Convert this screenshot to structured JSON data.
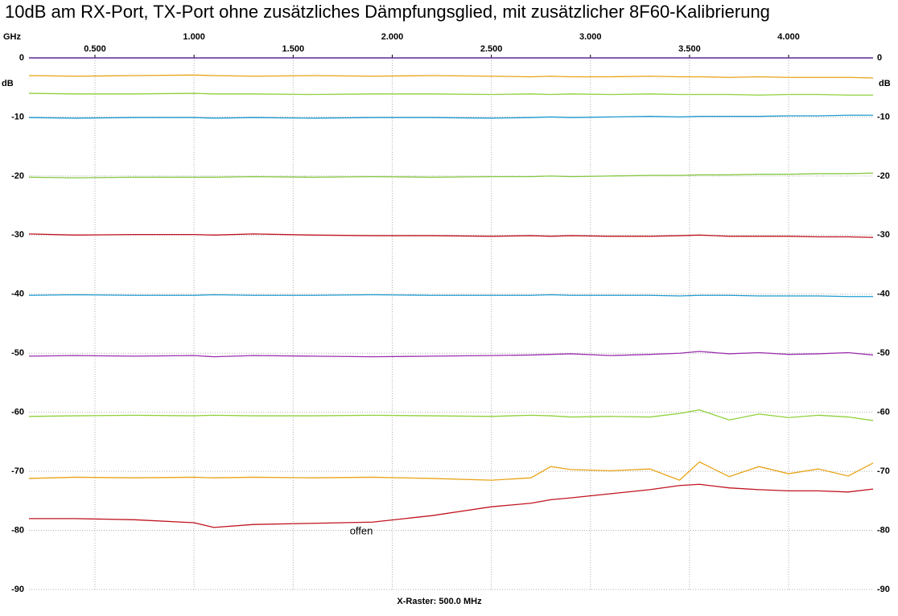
{
  "chart_data": {
    "type": "line",
    "title": "10dB am RX-Port, TX-Port ohne zusätzliches Dämpfungsglied, mit zusätzlicher 8F60-Kalibrierung",
    "x_unit": "GHz",
    "y_unit": "dB",
    "footer": "X-Raster: 500.0 MHz",
    "xlim": [
      0.167,
      4.426
    ],
    "ylim": [
      -90,
      0
    ],
    "xticks": [
      {
        "value": 0.5,
        "label": "0.500"
      },
      {
        "value": 1.0,
        "label": "1.000"
      },
      {
        "value": 1.5,
        "label": "1.500"
      },
      {
        "value": 2.0,
        "label": "2.000"
      },
      {
        "value": 2.5,
        "label": "2.500"
      },
      {
        "value": 3.0,
        "label": "3.000"
      },
      {
        "value": 3.5,
        "label": "3.500"
      },
      {
        "value": 4.0,
        "label": "4.000"
      }
    ],
    "yticks": [
      0,
      -10,
      -20,
      -30,
      -40,
      -50,
      -60,
      -70,
      -80,
      -90
    ],
    "grid": true,
    "x": [
      0.167,
      0.4,
      0.7,
      1.0,
      1.1,
      1.3,
      1.6,
      1.9,
      2.2,
      2.5,
      2.7,
      2.8,
      2.9,
      3.1,
      3.3,
      3.45,
      3.55,
      3.7,
      3.85,
      4.0,
      4.15,
      4.3,
      4.426
    ],
    "series": [
      {
        "color": "#e8a317",
        "values": [
          -3.0,
          -3.1,
          -3.0,
          -2.9,
          -3.0,
          -3.1,
          -3.0,
          -3.1,
          -3.0,
          -3.1,
          -3.2,
          -3.1,
          -3.2,
          -3.2,
          -3.1,
          -3.2,
          -3.2,
          -3.3,
          -3.2,
          -3.3,
          -3.3,
          -3.3,
          -3.4
        ]
      },
      {
        "color": "#8fd13b",
        "values": [
          -6.0,
          -6.1,
          -6.1,
          -6.0,
          -6.1,
          -6.1,
          -6.2,
          -6.1,
          -6.1,
          -6.2,
          -6.1,
          -6.2,
          -6.1,
          -6.2,
          -6.1,
          -6.2,
          -6.2,
          -6.2,
          -6.3,
          -6.2,
          -6.2,
          -6.3,
          -6.3
        ]
      },
      {
        "color": "#1f9bcf",
        "values": [
          -10.1,
          -10.2,
          -10.1,
          -10.1,
          -10.2,
          -10.1,
          -10.2,
          -10.1,
          -10.1,
          -10.2,
          -10.1,
          -10.0,
          -10.1,
          -10.0,
          -9.9,
          -10.0,
          -9.9,
          -9.9,
          -9.9,
          -9.8,
          -9.8,
          -9.7,
          -9.7
        ]
      },
      {
        "color": "#84c940",
        "values": [
          -20.2,
          -20.3,
          -20.2,
          -20.2,
          -20.2,
          -20.1,
          -20.2,
          -20.1,
          -20.2,
          -20.1,
          -20.1,
          -20.0,
          -20.1,
          -20.0,
          -19.9,
          -19.9,
          -19.8,
          -19.8,
          -19.7,
          -19.7,
          -19.6,
          -19.6,
          -19.5
        ]
      },
      {
        "color": "#c0141e",
        "values": [
          -29.8,
          -30.0,
          -29.9,
          -29.9,
          -30.0,
          -29.8,
          -30.0,
          -30.1,
          -30.1,
          -30.2,
          -30.1,
          -30.2,
          -30.1,
          -30.2,
          -30.2,
          -30.1,
          -30.0,
          -30.2,
          -30.2,
          -30.2,
          -30.3,
          -30.3,
          -30.4
        ]
      },
      {
        "color": "#1f9bcf",
        "values": [
          -40.2,
          -40.1,
          -40.2,
          -40.2,
          -40.1,
          -40.2,
          -40.2,
          -40.1,
          -40.2,
          -40.2,
          -40.2,
          -40.1,
          -40.2,
          -40.2,
          -40.2,
          -40.3,
          -40.2,
          -40.2,
          -40.3,
          -40.3,
          -40.3,
          -40.4,
          -40.4
        ]
      },
      {
        "color": "#9b2fae",
        "values": [
          -50.5,
          -50.4,
          -50.5,
          -50.4,
          -50.6,
          -50.4,
          -50.5,
          -50.6,
          -50.5,
          -50.4,
          -50.3,
          -50.2,
          -50.1,
          -50.4,
          -50.2,
          -50.0,
          -49.7,
          -50.1,
          -49.9,
          -50.2,
          -50.1,
          -49.9,
          -50.3
        ]
      },
      {
        "color": "#8fd13b",
        "values": [
          -60.7,
          -60.6,
          -60.5,
          -60.6,
          -60.5,
          -60.6,
          -60.6,
          -60.5,
          -60.6,
          -60.7,
          -60.5,
          -60.6,
          -60.8,
          -60.7,
          -60.8,
          -60.2,
          -59.6,
          -61.3,
          -60.3,
          -60.9,
          -60.5,
          -60.8,
          -61.4
        ]
      },
      {
        "color": "#e8a317",
        "values": [
          -71.2,
          -71.0,
          -71.1,
          -71.0,
          -71.1,
          -71.0,
          -71.1,
          -71.0,
          -71.2,
          -71.5,
          -71.1,
          -69.2,
          -69.7,
          -69.9,
          -69.6,
          -71.5,
          -68.4,
          -70.9,
          -69.2,
          -70.4,
          -69.6,
          -70.8,
          -68.6
        ]
      },
      {
        "color": "#c0141e",
        "values": [
          -78.0,
          -78.0,
          -78.2,
          -78.7,
          -79.5,
          -79.0,
          -78.8,
          -78.6,
          -77.5,
          -76.0,
          -75.4,
          -74.8,
          -74.5,
          -73.8,
          -73.1,
          -72.4,
          -72.2,
          -72.8,
          -73.1,
          -73.3,
          -73.3,
          -73.5,
          -73.0
        ]
      }
    ],
    "annotations": [
      {
        "text": "offen",
        "x": 1.844,
        "y": -80.2
      }
    ]
  }
}
